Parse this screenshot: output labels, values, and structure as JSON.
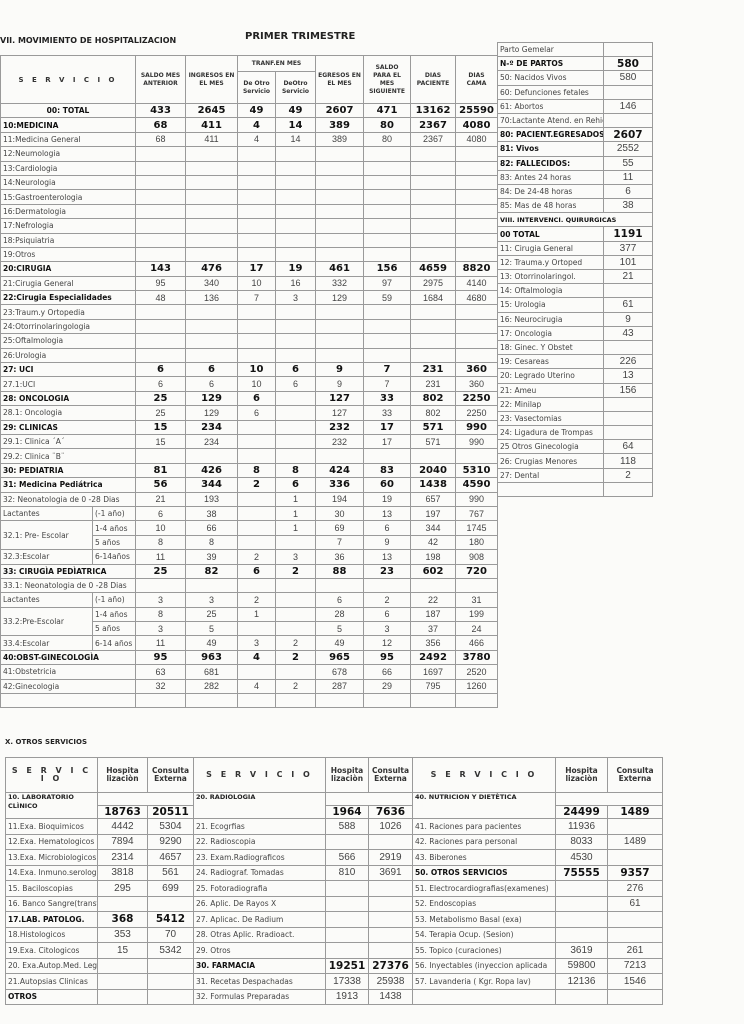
{
  "main": {
    "section_title": "VII. MOVIMIENTO DE HOSPITALIZACION",
    "period": "PRIMER TRIMESTRE",
    "headers": {
      "servicio": "S E R V I C I O",
      "saldo": "SALDO MES ANTERIOR",
      "ingresos": "INGRESOS EN EL MES",
      "tranf": "TRANF.EN MES",
      "de_otro_1": "De Otro Servicio",
      "de_otro_2": "DeOtro Servicio",
      "egresos": "EGRESOS EN EL MES",
      "saldo_sig": "SALDO PARA EL MES SIGUIENTE",
      "dias_paciente": "DIAS PACIENTE",
      "dias_cama": "DIAS CAMA"
    },
    "rows": [
      {
        "label": "00: TOTAL",
        "bold": true,
        "total": true,
        "values": [
          "433",
          "2645",
          "49",
          "49",
          "2607",
          "471",
          "13162",
          "25590"
        ]
      },
      {
        "label": "10:MEDICINA",
        "bold": true,
        "values": [
          "68",
          "411",
          "4",
          "14",
          "389",
          "80",
          "2367",
          "4080"
        ]
      },
      {
        "label": "11:Medicina General",
        "values": [
          "68",
          "411",
          "4",
          "14",
          "389",
          "80",
          "2367",
          "4080"
        ]
      },
      {
        "label": "12:Neumologia",
        "values": [
          "",
          "",
          "",
          "",
          "",
          "",
          "",
          ""
        ]
      },
      {
        "label": "13:Cardiologia",
        "values": [
          "",
          "",
          "",
          "",
          "",
          "",
          "",
          ""
        ]
      },
      {
        "label": "14:Neurologia",
        "values": [
          "",
          "",
          "",
          "",
          "",
          "",
          "",
          ""
        ]
      },
      {
        "label": "15:Gastroenterologia",
        "values": [
          "",
          "",
          "",
          "",
          "",
          "",
          "",
          ""
        ]
      },
      {
        "label": "16:Dermatologia",
        "values": [
          "",
          "",
          "",
          "",
          "",
          "",
          "",
          ""
        ]
      },
      {
        "label": "17:Nefrologia",
        "values": [
          "",
          "",
          "",
          "",
          "",
          "",
          "",
          ""
        ]
      },
      {
        "label": "18:Psiquiatria",
        "values": [
          "",
          "",
          "",
          "",
          "",
          "",
          "",
          ""
        ]
      },
      {
        "label": "19:Otros",
        "values": [
          "",
          "",
          "",
          "",
          "",
          "",
          "",
          ""
        ]
      },
      {
        "label": "20:CIRUGIA",
        "bold": true,
        "values": [
          "143",
          "476",
          "17",
          "19",
          "461",
          "156",
          "4659",
          "8820"
        ]
      },
      {
        "label": "21:Cirugia General",
        "values": [
          "95",
          "340",
          "10",
          "16",
          "332",
          "97",
          "2975",
          "4140"
        ]
      },
      {
        "label": "22:Cirugia Especialidades",
        "bold_label": true,
        "values": [
          "48",
          "136",
          "7",
          "3",
          "129",
          "59",
          "1684",
          "4680"
        ]
      },
      {
        "label": "23:Traum.y Ortopedia",
        "values": [
          "",
          "",
          "",
          "",
          "",
          "",
          "",
          ""
        ]
      },
      {
        "label": "24:Otorrinolaringologia",
        "values": [
          "",
          "",
          "",
          "",
          "",
          "",
          "",
          ""
        ]
      },
      {
        "label": "25:Oftalmologia",
        "values": [
          "",
          "",
          "",
          "",
          "",
          "",
          "",
          ""
        ]
      },
      {
        "label": "26:Urologia",
        "values": [
          "",
          "",
          "",
          "",
          "",
          "",
          "",
          ""
        ]
      },
      {
        "label": "27: UCI",
        "bold": true,
        "values": [
          "6",
          "6",
          "10",
          "6",
          "9",
          "7",
          "231",
          "360"
        ]
      },
      {
        "label": "27.1:UCI",
        "values": [
          "6",
          "6",
          "10",
          "6",
          "9",
          "7",
          "231",
          "360"
        ]
      },
      {
        "label": "28: ONCOLOGIA",
        "bold": true,
        "values": [
          "25",
          "129",
          "6",
          "",
          "127",
          "33",
          "802",
          "2250"
        ]
      },
      {
        "label": "28.1: Oncologia",
        "values": [
          "25",
          "129",
          "6",
          "",
          "127",
          "33",
          "802",
          "2250"
        ]
      },
      {
        "label": "29: CLINICAS",
        "bold": true,
        "values": [
          "15",
          "234",
          "",
          "",
          "232",
          "17",
          "571",
          "990"
        ]
      },
      {
        "label": "29.1: Clinica ´A´",
        "values": [
          "15",
          "234",
          "",
          "",
          "232",
          "17",
          "571",
          "990"
        ]
      },
      {
        "label": "29.2: Clinica ¨B¨",
        "values": [
          "",
          "",
          "",
          "",
          "",
          "",
          "",
          ""
        ]
      },
      {
        "label": "30: PEDIATRIA",
        "bold": true,
        "values": [
          "81",
          "426",
          "8",
          "8",
          "424",
          "83",
          "2040",
          "5310"
        ]
      },
      {
        "label": "31: Medicina Pediátrica",
        "bold": true,
        "values": [
          "56",
          "344",
          "2",
          "6",
          "336",
          "60",
          "1438",
          "4590"
        ]
      },
      {
        "label": "32: Neonatologia de 0 -28 Dias",
        "values": [
          "21",
          "193",
          "",
          "1",
          "194",
          "19",
          "657",
          "990"
        ]
      },
      {
        "label": "Lactantes",
        "age": "(-1 año)",
        "values": [
          "6",
          "38",
          "",
          "1",
          "30",
          "13",
          "197",
          "767"
        ]
      },
      {
        "label": "32.1: Pre- Escolar",
        "age": "1-4 años",
        "values": [
          "10",
          "66",
          "",
          "1",
          "69",
          "6",
          "344",
          "1745"
        ]
      },
      {
        "label": null,
        "age": "5 años",
        "values": [
          "8",
          "8",
          "",
          "",
          "7",
          "9",
          "42",
          "180"
        ]
      },
      {
        "label": "32.3:Escolar",
        "age": "6-14años",
        "values": [
          "11",
          "39",
          "2",
          "3",
          "36",
          "13",
          "198",
          "908"
        ]
      },
      {
        "label": "33: CIRUGÌA PEDÌATRICA",
        "bold": true,
        "values": [
          "25",
          "82",
          "6",
          "2",
          "88",
          "23",
          "602",
          "720"
        ]
      },
      {
        "label": "33.1: Neonatologia de 0 -28 Dias",
        "values": [
          "",
          "",
          "",
          "",
          "",
          "",
          "",
          ""
        ]
      },
      {
        "label": "Lactantes",
        "age": "(-1 año)",
        "values": [
          "3",
          "3",
          "2",
          "",
          "6",
          "2",
          "22",
          "31"
        ]
      },
      {
        "label": "33.2:Pre-Escolar",
        "age": "1-4 años",
        "values": [
          "8",
          "25",
          "1",
          "",
          "28",
          "6",
          "187",
          "199"
        ]
      },
      {
        "label": null,
        "age": "5 años",
        "values": [
          "3",
          "5",
          "",
          "",
          "5",
          "3",
          "37",
          "24"
        ]
      },
      {
        "label": "33.4:Escolar",
        "age": "6-14 años",
        "values": [
          "11",
          "49",
          "3",
          "2",
          "49",
          "12",
          "356",
          "466"
        ]
      },
      {
        "label": "40:OBST-GINECOLOGÌA",
        "bold": true,
        "values": [
          "95",
          "963",
          "4",
          "2",
          "965",
          "95",
          "2492",
          "3780"
        ]
      },
      {
        "label": "41:Obstetricia",
        "values": [
          "63",
          "681",
          "",
          "",
          "678",
          "66",
          "1697",
          "2520"
        ]
      },
      {
        "label": "42:Ginecologia",
        "values": [
          "32",
          "282",
          "4",
          "2",
          "287",
          "29",
          "795",
          "1260"
        ]
      },
      {
        "label": "",
        "values": [
          "",
          "",
          "",
          "",
          "",
          "",
          "",
          ""
        ]
      }
    ]
  },
  "side": {
    "rows": [
      {
        "label": "Parto Gemelar",
        "value": ""
      },
      {
        "label": "N-º DE PARTOS",
        "value": "580",
        "bold": true
      },
      {
        "label": "50:  Nacidos Vivos",
        "value": "580"
      },
      {
        "label": "60:  Defunciones fetales",
        "value": ""
      },
      {
        "label": "61:  Abortos",
        "value": "146"
      },
      {
        "label": "70:Lactante Atend. en Rehidr",
        "value": ""
      },
      {
        "label": "80: PACIENT.EGRESADOS",
        "value": "2607",
        "bold": true
      },
      {
        "label": "81:  Vivos",
        "value": "2552",
        "bold_label": true
      },
      {
        "label": "82:  FALLECIDOS:",
        "value": "55",
        "bold_label": true
      },
      {
        "label": "83:  Antes 24 horas",
        "value": "11"
      },
      {
        "label": "84:  De 24-48 horas",
        "value": "6"
      },
      {
        "label": "85:  Mas de 48 horas",
        "value": "38"
      },
      {
        "label": "VIII. INTERVENCI.  QUIRURGICAS",
        "value": "",
        "bold_label": true
      },
      {
        "label": "00  TOTAL",
        "value": "1191",
        "bold": true
      },
      {
        "label": "11: Cirugia General",
        "value": "377"
      },
      {
        "label": "12: Trauma.y Ortoped",
        "value": "101"
      },
      {
        "label": "13: Otorrinolaringol.",
        "value": "21"
      },
      {
        "label": "14: Oftalmologia",
        "value": ""
      },
      {
        "label": "15: Urologia",
        "value": "61"
      },
      {
        "label": "16: Neurocirugia",
        "value": "9"
      },
      {
        "label": "17: Oncologia",
        "value": "43"
      },
      {
        "label": "18: Ginec. Y Obstet",
        "value": ""
      },
      {
        "label": "19: Cesareas",
        "value": "226"
      },
      {
        "label": "20: Legrado Uterino",
        "value": "13"
      },
      {
        "label": "21:  Ameu",
        "value": "156"
      },
      {
        "label": "22: Minilap",
        "value": ""
      },
      {
        "label": "23: Vasectomias",
        "value": ""
      },
      {
        "label": "24: Ligadura de Trompas",
        "value": ""
      },
      {
        "label": "25 Otros Ginecologia",
        "value": "64"
      },
      {
        "label": "26: Crugias Menores",
        "value": "118"
      },
      {
        "label": "27: Dental",
        "value": "2"
      },
      {
        "label": "",
        "value": ""
      }
    ]
  },
  "otros": {
    "section_title": "X. OTROS SERVICIOS",
    "headers": {
      "servicio": "S E R V I C I O",
      "hosp": "Hospita lizaciòn",
      "cons": "Consulta Externa"
    },
    "blocks": [
      {
        "title": "10. LABORATORIO CLÌNICO",
        "totals": [
          "18763",
          "20511"
        ],
        "items": [
          {
            "label": "11.Exa. Bioquimicos",
            "h": "4442",
            "c": "5304"
          },
          {
            "label": "12.Exa. Hematologicos",
            "h": "7894",
            "c": "9290"
          },
          {
            "label": "13.Exa. Microbiologicos",
            "h": "2314",
            "c": "4657"
          },
          {
            "label": "14.Exa. Inmuno.serolog",
            "h": "3818",
            "c": "561"
          },
          {
            "label": "15. Baciloscopias",
            "h": "295",
            "c": "699"
          },
          {
            "label": "16. Banco Sangre(transf",
            "h": "",
            "c": ""
          },
          {
            "label": "17.LAB. PATOLOG.",
            "h": "368",
            "c": "5412",
            "bold": true
          },
          {
            "label": "18.Histologicos",
            "h": "353",
            "c": "70"
          },
          {
            "label": "19.Exa. Citologicos",
            "h": "15",
            "c": "5342"
          },
          {
            "label": "20. Exa.Autop.Med. Leg",
            "h": "",
            "c": ""
          },
          {
            "label": "21.Autopsias Clinicas",
            "h": "",
            "c": ""
          },
          {
            "label": "OTROS",
            "h": "",
            "c": "",
            "bold": true
          }
        ]
      },
      {
        "title": "20. RADIOLOGIA",
        "totals": [
          "1964",
          "7636"
        ],
        "items": [
          {
            "label": "21. Ecogrfias",
            "h": "588",
            "c": "1026"
          },
          {
            "label": "22. Radioscopia",
            "h": "",
            "c": ""
          },
          {
            "label": "23. Exam.Radiograficos",
            "h": "566",
            "c": "2919"
          },
          {
            "label": "24. Radiograf. Tomadas",
            "h": "810",
            "c": "3691"
          },
          {
            "label": "25. Fotoradiografia",
            "h": "",
            "c": ""
          },
          {
            "label": "26. Aplic. De Rayos X",
            "h": "",
            "c": ""
          },
          {
            "label": "27. Aplicac. De Radium",
            "h": "",
            "c": ""
          },
          {
            "label": "28. Otras Aplic. Rradioact.",
            "h": "",
            "c": ""
          },
          {
            "label": "29. Otros",
            "h": "",
            "c": ""
          },
          {
            "label": "30. FARMACIA",
            "h": "19251",
            "c": "27376",
            "bold": true
          },
          {
            "label": "31. Recetas Despachadas",
            "h": "17338",
            "c": "25938"
          },
          {
            "label": "32. Formulas Preparadas",
            "h": "1913",
            "c": "1438"
          }
        ]
      },
      {
        "title": "40. NUTRICION Y DIETÈTICA",
        "totals": [
          "24499",
          "1489"
        ],
        "items": [
          {
            "label": "41. Raciones para pacientes",
            "h": "11936",
            "c": ""
          },
          {
            "label": "42. Raciones para personal",
            "h": "8033",
            "c": "1489"
          },
          {
            "label": "43. Biberones",
            "h": "4530",
            "c": ""
          },
          {
            "label": "50. OTROS SERVICIOS",
            "h": "75555",
            "c": "9357",
            "bold": true
          },
          {
            "label": "51. Electrocardiografias(examenes)",
            "h": "",
            "c": "276"
          },
          {
            "label": "52. Endoscopias",
            "h": "",
            "c": "61"
          },
          {
            "label": "53. Metabolismo Basal (exa)",
            "h": "",
            "c": ""
          },
          {
            "label": "54. Terapia Ocup. (Sesion)",
            "h": "",
            "c": ""
          },
          {
            "label": "55. Topico (curaciones)",
            "h": "3619",
            "c": "261"
          },
          {
            "label": "56. Inyectables (inyeccion aplicada",
            "h": "59800",
            "c": "7213"
          },
          {
            "label": "57. Lavanderia ( Kgr. Ropa lav)",
            "h": "12136",
            "c": "1546"
          },
          {
            "label": "",
            "h": "",
            "c": ""
          }
        ]
      }
    ]
  }
}
